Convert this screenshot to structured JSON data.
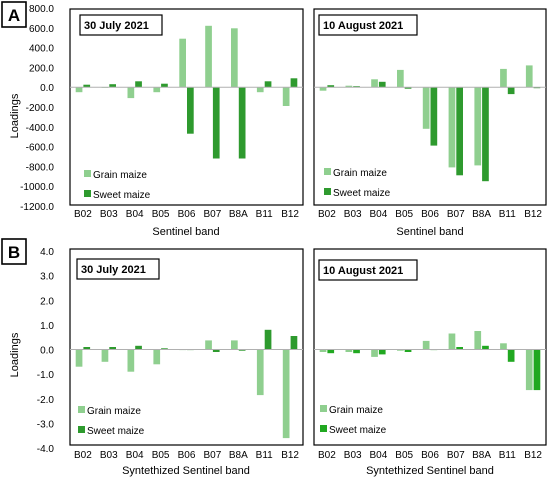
{
  "figure": {
    "panels": [
      {
        "label": "A",
        "xlabel": "Sentinel band",
        "ylabel": "Loadings",
        "ylim": [
          -1200,
          800
        ],
        "yticks": [
          800,
          600,
          400,
          200,
          0,
          -200,
          -400,
          -600,
          -800,
          -1000,
          -1200
        ],
        "ytick_labels": [
          "800.0",
          "600.0",
          "400.0",
          "200.0",
          "0.0",
          "-200.0",
          "-400.0",
          "-600.0",
          "-800.0",
          "-1000.0",
          "-1200.0"
        ]
      },
      {
        "label": "B",
        "xlabel": "Syntethized Sentinel band",
        "ylabel": "Loadings",
        "ylim": [
          -4,
          4
        ],
        "yticks": [
          4,
          3,
          2,
          1,
          0,
          -1,
          -2,
          -3,
          -4
        ],
        "ytick_labels": [
          "4.0",
          "3.0",
          "2.0",
          "1.0",
          "0.0",
          "-1.0",
          "-2.0",
          "-3.0",
          "-4.0"
        ]
      }
    ],
    "colors": {
      "grain": "#8fcf8f",
      "sweet": "#2e9a2e",
      "sweet_bright": "#21a821"
    }
  },
  "chart_data": [
    {
      "type": "bar",
      "panel": "A",
      "title": "30 July 2021",
      "xlabel": "Sentinel band",
      "ylabel": "Loadings",
      "ylim": [
        -1200,
        800
      ],
      "legend": "bottom-left",
      "categories": [
        "B02",
        "B03",
        "B04",
        "B05",
        "B06",
        "B07",
        "B8A",
        "B11",
        "B12"
      ],
      "series": [
        {
          "name": "Grain maize",
          "values": [
            -50,
            0,
            -110,
            -50,
            490,
            620,
            595,
            -50,
            -190
          ]
        },
        {
          "name": "Sweet maize",
          "values": [
            25,
            30,
            60,
            35,
            -470,
            -720,
            -720,
            60,
            90
          ]
        }
      ]
    },
    {
      "type": "bar",
      "panel": "A",
      "title": "10 August 2021",
      "xlabel": "Sentinel band",
      "ylabel": "",
      "ylim": [
        -1200,
        800
      ],
      "legend": "bottom-left",
      "categories": [
        "B02",
        "B03",
        "B04",
        "B05",
        "B06",
        "B07",
        "B8A",
        "B11",
        "B12"
      ],
      "series": [
        {
          "name": "Grain maize",
          "values": [
            -35,
            15,
            80,
            175,
            -420,
            -810,
            -790,
            185,
            220
          ]
        },
        {
          "name": "Sweet maize",
          "values": [
            20,
            10,
            55,
            -15,
            -590,
            -890,
            -950,
            -70,
            -10
          ]
        }
      ]
    },
    {
      "type": "bar",
      "panel": "B",
      "title": "30 July 2021",
      "xlabel": "Syntethized Sentinel band",
      "ylabel": "Loadings",
      "ylim": [
        -4,
        4
      ],
      "legend": "bottom-left",
      "categories": [
        "B02",
        "B03",
        "B04",
        "B05",
        "B06",
        "B07",
        "B8A",
        "B11",
        "B12"
      ],
      "series": [
        {
          "name": "Grain maize",
          "values": [
            -0.7,
            -0.5,
            -0.9,
            -0.6,
            -0.02,
            0.37,
            0.37,
            -1.85,
            -3.6
          ]
        },
        {
          "name": "Sweet maize",
          "values": [
            0.1,
            0.1,
            0.15,
            0.05,
            0.0,
            -0.1,
            -0.05,
            0.8,
            0.55
          ]
        }
      ]
    },
    {
      "type": "bar",
      "panel": "B",
      "title": "10 August 2021",
      "xlabel": "Syntethized Sentinel band",
      "ylabel": "",
      "ylim": [
        -4,
        4
      ],
      "legend": "bottom-left",
      "categories": [
        "B02",
        "B03",
        "B04",
        "B05",
        "B06",
        "B07",
        "B8A",
        "B11",
        "B12"
      ],
      "series": [
        {
          "name": "Grain maize",
          "values": [
            -0.1,
            -0.1,
            -0.3,
            -0.05,
            0.35,
            0.65,
            0.75,
            0.25,
            -1.65
          ]
        },
        {
          "name": "Sweet maize",
          "values": [
            -0.15,
            -0.15,
            -0.2,
            -0.1,
            0.0,
            0.1,
            0.15,
            -0.5,
            -1.65
          ]
        }
      ]
    }
  ]
}
